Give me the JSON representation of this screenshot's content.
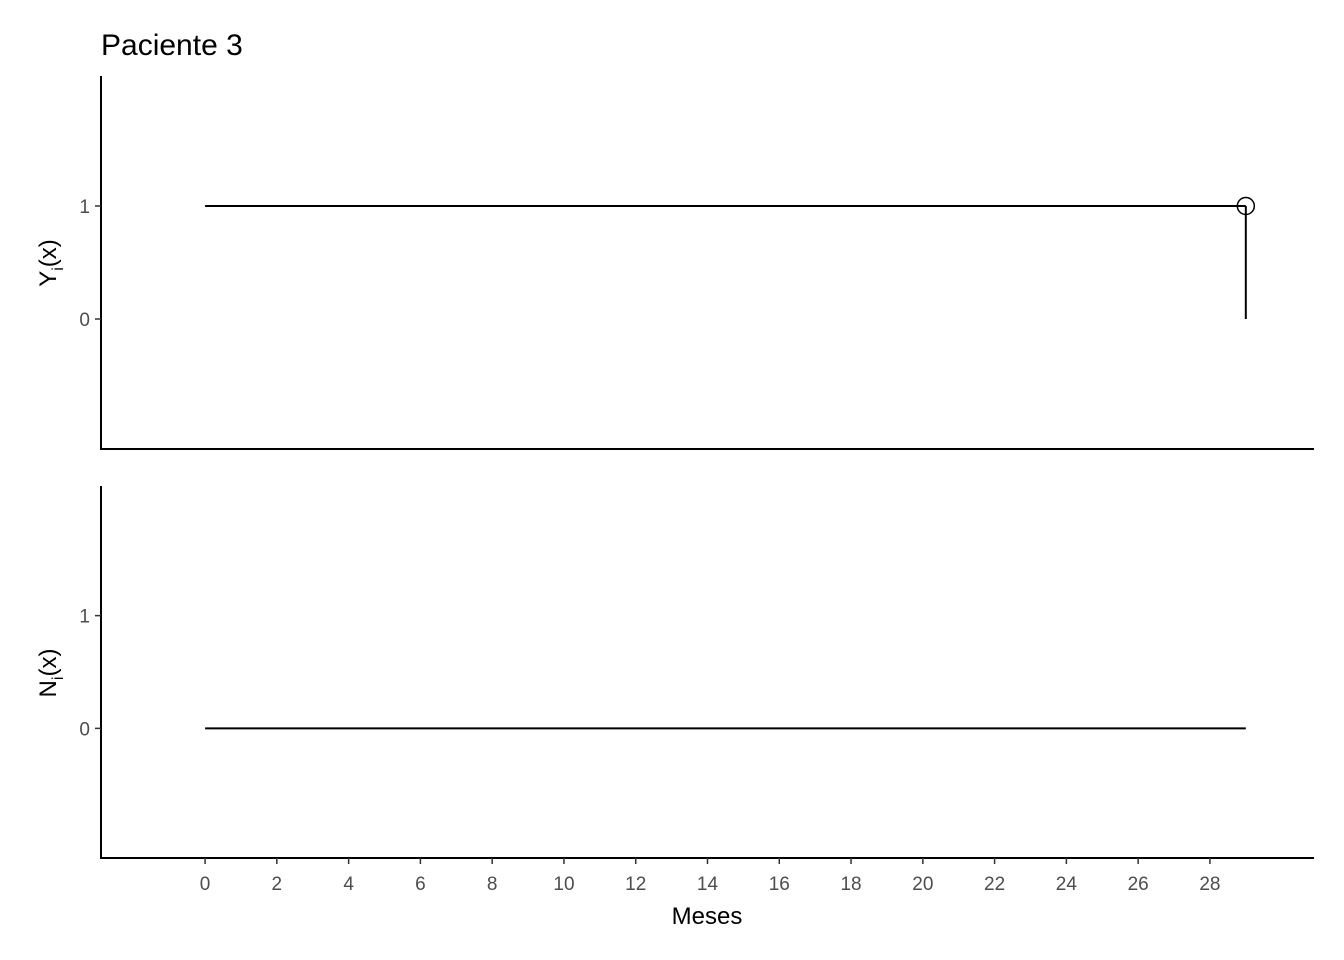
{
  "chart_data": {
    "type": "line",
    "title": "Paciente 3",
    "xlabel": "Meses",
    "x_ticks": [
      0,
      2,
      4,
      6,
      8,
      10,
      12,
      14,
      16,
      18,
      20,
      22,
      24,
      26,
      28
    ],
    "xlim": [
      -2.9,
      30.9
    ],
    "panels": [
      {
        "ylabel_base": "Y",
        "ylabel_sub": "i",
        "ylabel_tail": "(x)",
        "y_ticks": [
          0,
          1
        ],
        "ylim": [
          -1.15,
          2.15
        ],
        "segments": [
          {
            "x": [
              0,
              29
            ],
            "y": [
              1,
              1
            ]
          },
          {
            "x": [
              29,
              29
            ],
            "y": [
              1,
              0
            ]
          }
        ],
        "censor_points": [
          {
            "x": 29,
            "y": 1
          }
        ]
      },
      {
        "ylabel_base": "N",
        "ylabel_sub": "i",
        "ylabel_tail": "(x)",
        "y_ticks": [
          0,
          1
        ],
        "ylim": [
          -1.15,
          2.15
        ],
        "segments": [
          {
            "x": [
              0,
              29
            ],
            "y": [
              0,
              0
            ]
          }
        ],
        "censor_points": []
      }
    ]
  }
}
